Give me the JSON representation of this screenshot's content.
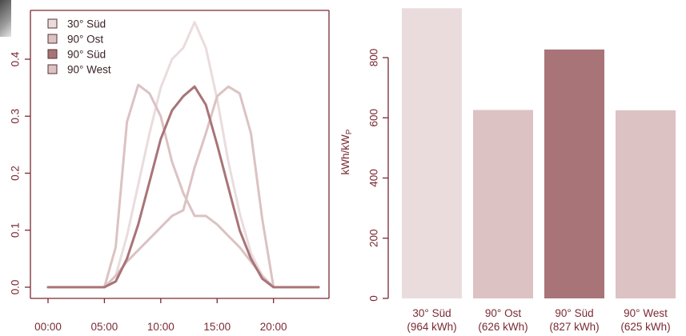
{
  "colors": {
    "axis": "#7a2a32",
    "s30_sued": "#eadcdd",
    "s90_ost": "#dcc2c3",
    "s90_sued": "#a87478",
    "s90_west": "#dcc2c3"
  },
  "chart_data": [
    {
      "type": "line",
      "x_ticks": [
        "00:00",
        "05:00",
        "10:00",
        "15:00",
        "20:00"
      ],
      "x_tick_values": [
        0,
        5,
        10,
        15,
        20
      ],
      "xlim": [
        0,
        24
      ],
      "ylim": [
        0,
        0.47
      ],
      "y_ticks": [
        "0.0",
        "0.1",
        "0.2",
        "0.3",
        "0.4"
      ],
      "y_tick_values": [
        0,
        0.1,
        0.2,
        0.3,
        0.4
      ],
      "legend_position": "top-left",
      "series": [
        {
          "name": "30° Süd",
          "color_key": "s30_sued",
          "x": [
            0,
            5,
            6,
            7,
            8,
            9,
            10,
            11,
            12,
            13,
            14,
            15,
            16,
            17,
            18,
            19,
            20,
            21,
            22,
            23,
            24
          ],
          "y": [
            0,
            0,
            0.02,
            0.09,
            0.18,
            0.27,
            0.35,
            0.4,
            0.42,
            0.465,
            0.42,
            0.33,
            0.22,
            0.13,
            0.06,
            0.02,
            0,
            0,
            0,
            0,
            0
          ]
        },
        {
          "name": "90° Ost",
          "color_key": "s90_ost",
          "x": [
            0,
            5,
            6,
            7,
            8,
            9,
            10,
            11,
            12,
            13,
            14,
            15,
            16,
            17,
            18,
            19,
            20,
            21,
            22,
            23,
            24
          ],
          "y": [
            0,
            0,
            0.07,
            0.29,
            0.355,
            0.34,
            0.3,
            0.22,
            0.165,
            0.125,
            0.125,
            0.11,
            0.09,
            0.07,
            0.045,
            0.02,
            0,
            0,
            0,
            0,
            0
          ]
        },
        {
          "name": "90° Süd",
          "color_key": "s90_sued",
          "x": [
            0,
            5,
            6,
            7,
            8,
            9,
            10,
            11,
            12,
            13,
            14,
            15,
            16,
            17,
            18,
            19,
            20,
            21,
            22,
            23,
            24
          ],
          "y": [
            0,
            0,
            0.01,
            0.05,
            0.11,
            0.185,
            0.26,
            0.31,
            0.335,
            0.352,
            0.32,
            0.25,
            0.175,
            0.1,
            0.05,
            0.015,
            0,
            0,
            0,
            0,
            0
          ]
        },
        {
          "name": "90° West",
          "color_key": "s90_west",
          "x": [
            0,
            5,
            6,
            7,
            8,
            9,
            10,
            11,
            12,
            13,
            14,
            15,
            16,
            17,
            18,
            19,
            20,
            21,
            22,
            23,
            24
          ],
          "y": [
            0,
            0,
            0.02,
            0.045,
            0.065,
            0.085,
            0.105,
            0.125,
            0.135,
            0.21,
            0.27,
            0.335,
            0.352,
            0.34,
            0.27,
            0.12,
            0,
            0,
            0,
            0,
            0
          ]
        }
      ]
    },
    {
      "type": "bar",
      "ylabel": "kWh/kWp",
      "ylim": [
        0,
        1000
      ],
      "y_ticks": [
        "0",
        "200",
        "400",
        "600",
        "800"
      ],
      "y_tick_values": [
        0,
        200,
        400,
        600,
        800
      ],
      "categories": [
        "30° Süd",
        "90° Ost",
        "90° Süd",
        "90° West"
      ],
      "category_sublabels": [
        "(964 kWh)",
        "(626 kWh)",
        "(827 kWh)",
        "(625 kWh)"
      ],
      "values": [
        964,
        626,
        827,
        625
      ],
      "color_keys": [
        "s30_sued",
        "s90_ost",
        "s90_sued",
        "s90_west"
      ]
    }
  ]
}
